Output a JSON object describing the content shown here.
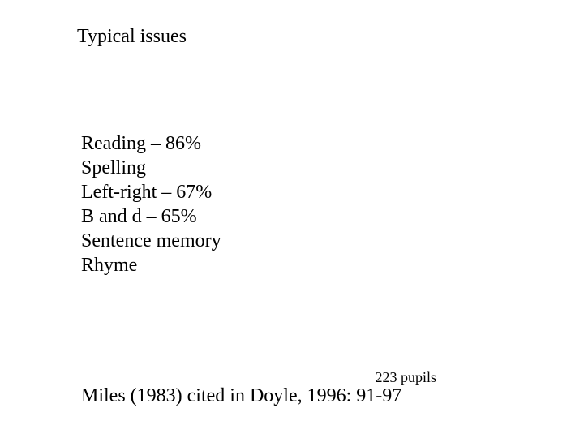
{
  "title": "Typical issues",
  "lines": {
    "l0": "Reading – 86%",
    "l1": "Spelling",
    "l2": "Left-right – 67%",
    "l3": "B and d – 65%",
    "l4": "Sentence memory",
    "l5": "Rhyme"
  },
  "sample": "223 pupils",
  "citation": "Miles (1983) cited in Doyle, 1996: 91-97"
}
